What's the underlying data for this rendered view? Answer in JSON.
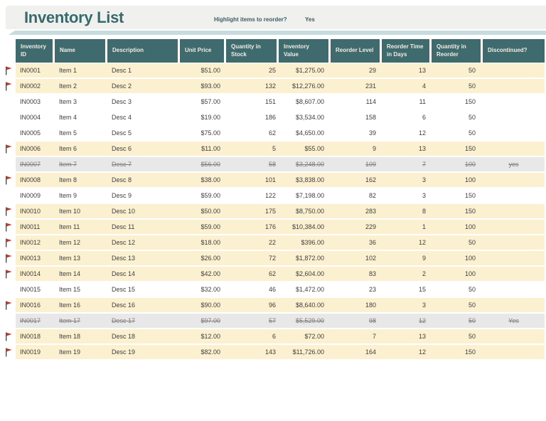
{
  "page": {
    "title": "Inventory List",
    "reorder_prompt": "Highlight items to reorder?",
    "reorder_value": "Yes"
  },
  "colors": {
    "header_teal": "#3F6B6E",
    "title_teal": "#38696C",
    "banner_gray": "#F0F0EF",
    "banner_accent": "#C7DCDE",
    "highlight_cream": "#FBF0CF",
    "discontinued_gray": "#E8E8E8",
    "flag_red": "#C13B2C"
  },
  "table": {
    "columns": [
      "Inventory ID",
      "Name",
      "Description",
      "Unit Price",
      "Quantity in Stock",
      "Inventory Value",
      "Reorder Level",
      "Reorder Time in Days",
      "Quantity in Reorder",
      "Discontinued?"
    ],
    "column_keys": [
      "inventory-id",
      "name",
      "description",
      "unit-price",
      "quantity-in-stock",
      "inventory-value",
      "reorder-level",
      "reorder-time-in-days",
      "quantity-in-reorder",
      "discontinued"
    ],
    "rows": [
      {
        "state": "highlighted",
        "flagged": true,
        "cells": [
          "IN0001",
          "Item 1",
          "Desc 1",
          "$51.00",
          "25",
          "$1,275.00",
          "29",
          "13",
          "50",
          ""
        ]
      },
      {
        "state": "highlighted",
        "flagged": true,
        "cells": [
          "IN0002",
          "Item 2",
          "Desc 2",
          "$93.00",
          "132",
          "$12,276.00",
          "231",
          "4",
          "50",
          ""
        ]
      },
      {
        "state": "normal",
        "flagged": false,
        "cells": [
          "IN0003",
          "Item 3",
          "Desc 3",
          "$57.00",
          "151",
          "$8,607.00",
          "114",
          "11",
          "150",
          ""
        ]
      },
      {
        "state": "normal",
        "flagged": false,
        "cells": [
          "IN0004",
          "Item 4",
          "Desc 4",
          "$19.00",
          "186",
          "$3,534.00",
          "158",
          "6",
          "50",
          ""
        ]
      },
      {
        "state": "normal",
        "flagged": false,
        "cells": [
          "IN0005",
          "Item 5",
          "Desc 5",
          "$75.00",
          "62",
          "$4,650.00",
          "39",
          "12",
          "50",
          ""
        ]
      },
      {
        "state": "highlighted",
        "flagged": true,
        "cells": [
          "IN0006",
          "Item 6",
          "Desc 6",
          "$11.00",
          "5",
          "$55.00",
          "9",
          "13",
          "150",
          ""
        ]
      },
      {
        "state": "discontinued",
        "flagged": false,
        "cells": [
          "IN0007",
          "Item 7",
          "Desc 7",
          "$56.00",
          "58",
          "$3,248.00",
          "109",
          "7",
          "100",
          "yes"
        ]
      },
      {
        "state": "highlighted",
        "flagged": true,
        "cells": [
          "IN0008",
          "Item 8",
          "Desc 8",
          "$38.00",
          "101",
          "$3,838.00",
          "162",
          "3",
          "100",
          ""
        ]
      },
      {
        "state": "normal",
        "flagged": false,
        "cells": [
          "IN0009",
          "Item 9",
          "Desc 9",
          "$59.00",
          "122",
          "$7,198.00",
          "82",
          "3",
          "150",
          ""
        ]
      },
      {
        "state": "highlighted",
        "flagged": true,
        "cells": [
          "IN0010",
          "Item 10",
          "Desc 10",
          "$50.00",
          "175",
          "$8,750.00",
          "283",
          "8",
          "150",
          ""
        ]
      },
      {
        "state": "highlighted",
        "flagged": true,
        "cells": [
          "IN0011",
          "Item 11",
          "Desc 11",
          "$59.00",
          "176",
          "$10,384.00",
          "229",
          "1",
          "100",
          ""
        ]
      },
      {
        "state": "highlighted",
        "flagged": true,
        "cells": [
          "IN0012",
          "Item 12",
          "Desc 12",
          "$18.00",
          "22",
          "$396.00",
          "36",
          "12",
          "50",
          ""
        ]
      },
      {
        "state": "highlighted",
        "flagged": true,
        "cells": [
          "IN0013",
          "Item 13",
          "Desc 13",
          "$26.00",
          "72",
          "$1,872.00",
          "102",
          "9",
          "100",
          ""
        ]
      },
      {
        "state": "highlighted",
        "flagged": true,
        "cells": [
          "IN0014",
          "Item 14",
          "Desc 14",
          "$42.00",
          "62",
          "$2,604.00",
          "83",
          "2",
          "100",
          ""
        ]
      },
      {
        "state": "normal",
        "flagged": false,
        "cells": [
          "IN0015",
          "Item 15",
          "Desc 15",
          "$32.00",
          "46",
          "$1,472.00",
          "23",
          "15",
          "50",
          ""
        ]
      },
      {
        "state": "highlighted",
        "flagged": true,
        "cells": [
          "IN0016",
          "Item 16",
          "Desc 16",
          "$90.00",
          "96",
          "$8,640.00",
          "180",
          "3",
          "50",
          ""
        ]
      },
      {
        "state": "discontinued",
        "flagged": false,
        "cells": [
          "IN0017",
          "Item 17",
          "Desc 17",
          "$97.00",
          "57",
          "$5,529.00",
          "98",
          "12",
          "50",
          "Yes"
        ]
      },
      {
        "state": "highlighted",
        "flagged": true,
        "cells": [
          "IN0018",
          "Item 18",
          "Desc 18",
          "$12.00",
          "6",
          "$72.00",
          "7",
          "13",
          "50",
          ""
        ]
      },
      {
        "state": "highlighted",
        "flagged": true,
        "cells": [
          "IN0019",
          "Item 19",
          "Desc 19",
          "$82.00",
          "143",
          "$11,726.00",
          "164",
          "12",
          "150",
          ""
        ]
      }
    ]
  }
}
